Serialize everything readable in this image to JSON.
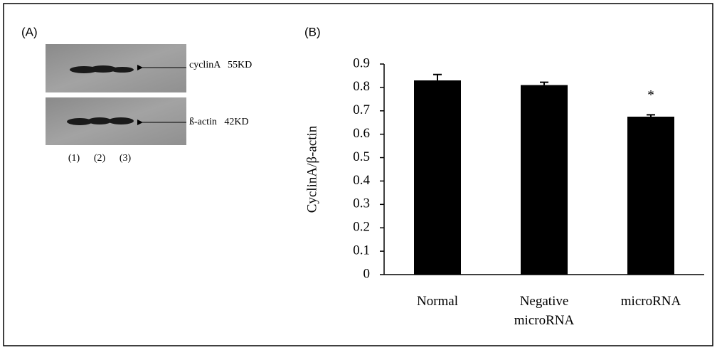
{
  "panel_a": {
    "label": "(A)",
    "bands": [
      "cyclinA   55KD",
      "ß-actin   42KD"
    ],
    "lanes": [
      "(1)",
      "(2)",
      "(3)"
    ]
  },
  "chart_data": {
    "type": "bar",
    "panel_label": "(B)",
    "y_label": "CyclinA/β-actin",
    "categories": [
      "Normal",
      "Negative microRNA",
      "microRNA"
    ],
    "values": [
      0.83,
      0.81,
      0.675
    ],
    "errors": [
      0.025,
      0.012,
      0.008
    ],
    "significance_label": "*",
    "color": "#000000",
    "ylim": [
      0,
      0.9
    ],
    "yticks": [
      0,
      0.1,
      0.2,
      0.3,
      0.4,
      0.5,
      0.6,
      0.7,
      0.8,
      0.9
    ]
  }
}
